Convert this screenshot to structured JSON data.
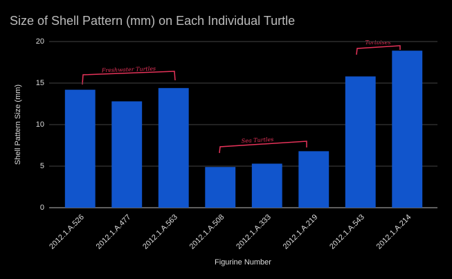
{
  "chart_data": {
    "type": "bar",
    "title": "Size of Shell Pattern (mm) on Each Individual Turtle",
    "x_label": "Figurine Number",
    "y_label": "Shell Pattern Size (mm)",
    "categories": [
      "2012.1.A.526",
      "2012.1.A.477",
      "2012.1.A.563",
      "2012.1.A.508",
      "2012.1.A.333",
      "2012.1.A.219",
      "2012.1.A.543",
      "2012.1.A.214"
    ],
    "values": [
      14.2,
      12.8,
      14.4,
      4.9,
      5.3,
      6.8,
      15.8,
      18.9
    ],
    "color": "#1155cc",
    "ylim": [
      0,
      20
    ],
    "yticks": [
      0,
      5,
      10,
      15,
      20
    ],
    "grid": true,
    "annotations": [
      "Freshwater Turtles",
      "Sea Turtles",
      "Tortoises"
    ]
  }
}
